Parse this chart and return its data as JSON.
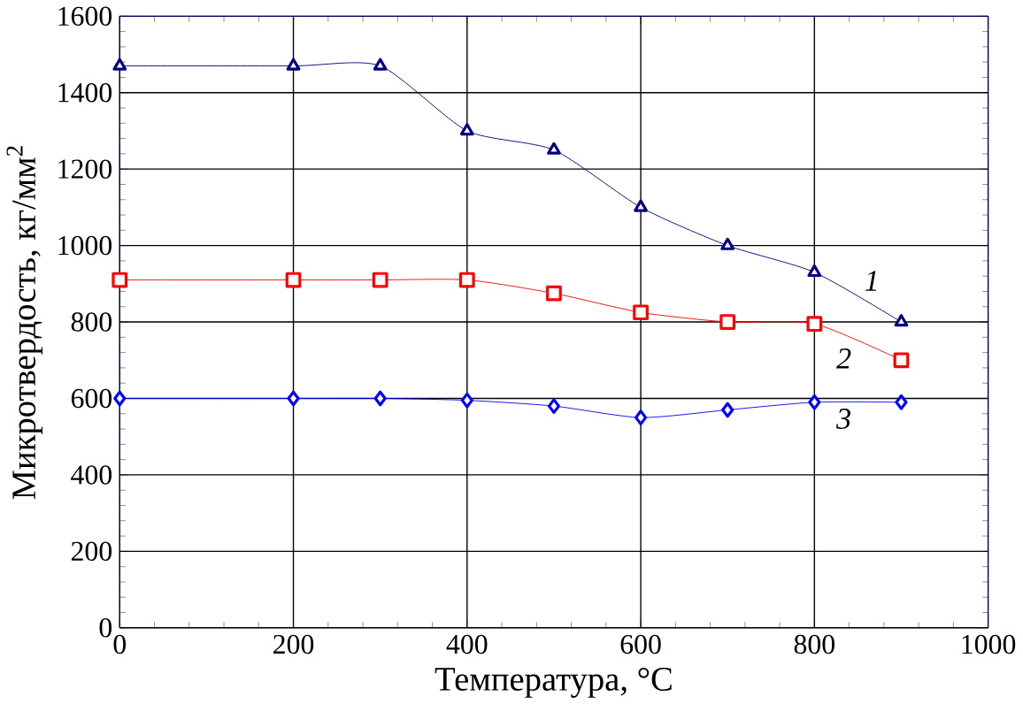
{
  "chart_data": {
    "type": "line",
    "xlabel": "Температура, °C",
    "ylabel": "Микротвердость, кг/мм$^{2}$",
    "x": [
      0,
      200,
      300,
      400,
      500,
      600,
      700,
      800,
      900
    ],
    "series": [
      {
        "name": "1",
        "color": "#000080",
        "marker": "triangle",
        "values": [
          1470,
          1470,
          1470,
          1300,
          1250,
          1100,
          1000,
          930,
          800
        ]
      },
      {
        "name": "2",
        "color": "#ff0000",
        "marker": "square",
        "values": [
          910,
          910,
          910,
          910,
          875,
          825,
          800,
          795,
          700
        ]
      },
      {
        "name": "3",
        "color": "#0000ff",
        "marker": "diamond",
        "values": [
          600,
          600,
          600,
          595,
          580,
          550,
          570,
          590,
          590
        ]
      }
    ],
    "xlim": [
      0,
      1000
    ],
    "xticks": [
      0,
      200,
      400,
      600,
      800,
      1000
    ],
    "ylim": [
      0,
      1600
    ],
    "yticks": [
      0,
      200,
      400,
      600,
      800,
      1000,
      1200,
      1400,
      1600
    ],
    "grid": true,
    "legend": false
  }
}
